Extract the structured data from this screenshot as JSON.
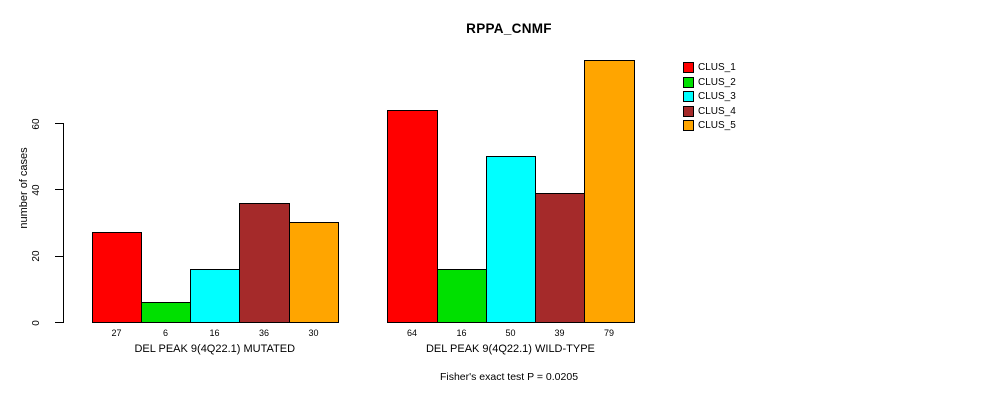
{
  "chart_data": {
    "type": "bar",
    "title": "RPPA_CNMF",
    "ylabel": "number of cases",
    "yticks": [
      0,
      20,
      40,
      60
    ],
    "ylim": [
      0,
      80
    ],
    "grid": false,
    "legend_position": "topright",
    "series": [
      "CLUS_1",
      "CLUS_2",
      "CLUS_3",
      "CLUS_4",
      "CLUS_5"
    ],
    "series_colors": [
      "#FF0000",
      "#00E000",
      "#00FFFF",
      "#A52A2A",
      "#FFA500"
    ],
    "groups": [
      {
        "label": "DEL PEAK 9(4Q22.1) MUTATED",
        "values": [
          27,
          6,
          16,
          36,
          30
        ]
      },
      {
        "label": "DEL PEAK 9(4Q22.1) WILD-TYPE",
        "values": [
          64,
          16,
          50,
          39,
          79
        ]
      }
    ],
    "annotation": "Fisher's exact test P = 0.0205",
    "axis_color": "#000000",
    "bar_border_color": "#000000",
    "background_color": "#FFFFFF"
  }
}
